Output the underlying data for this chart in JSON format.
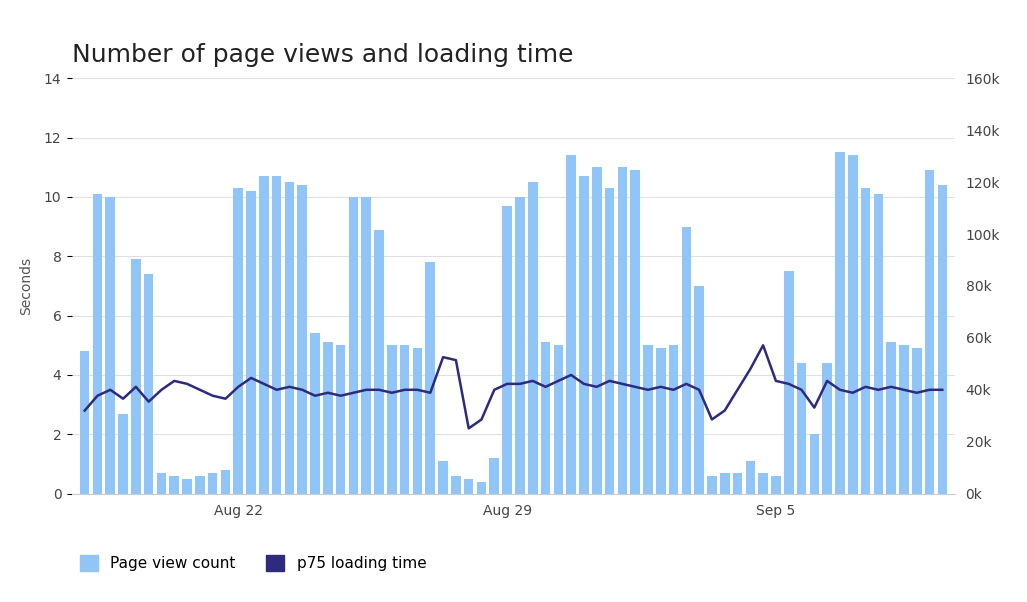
{
  "title": "Number of page views and loading time",
  "ylabel_left": "Seconds",
  "ylim_left": [
    0,
    14
  ],
  "ylim_right": [
    0,
    160000
  ],
  "yticks_left": [
    0,
    2,
    4,
    6,
    8,
    10,
    12,
    14
  ],
  "yticks_right": [
    0,
    20000,
    40000,
    60000,
    80000,
    100000,
    120000,
    140000,
    160000
  ],
  "bg_color": "#ffffff",
  "plot_bg_color": "#ffffff",
  "bar_color": "#92c5f7",
  "line_color": "#2d2b7f",
  "bar_width": 0.75,
  "bar_heights": [
    4.8,
    10.1,
    10.0,
    2.7,
    7.9,
    7.4,
    0.7,
    0.6,
    0.5,
    0.6,
    0.7,
    0.8,
    10.3,
    10.2,
    10.7,
    10.7,
    10.5,
    10.4,
    5.4,
    5.1,
    5.0,
    10.0,
    10.0,
    8.9,
    5.0,
    5.0,
    4.9,
    7.8,
    1.1,
    0.6,
    0.5,
    0.4,
    1.2,
    9.7,
    10.0,
    10.5,
    5.1,
    5.0,
    11.4,
    10.7,
    11.0,
    10.3,
    11.0,
    10.9,
    5.0,
    4.9,
    5.0,
    9.0,
    7.0,
    0.6,
    0.7,
    0.7,
    1.1,
    0.7,
    0.6,
    7.5,
    4.4,
    2.0,
    4.4,
    11.5,
    11.4,
    10.3,
    10.1,
    5.1,
    5.0,
    4.9,
    10.9,
    10.4
  ],
  "line_values": [
    2.8,
    3.3,
    3.5,
    3.2,
    3.6,
    3.1,
    3.5,
    3.8,
    3.7,
    3.5,
    3.3,
    3.2,
    3.6,
    3.9,
    3.7,
    3.5,
    3.6,
    3.5,
    3.3,
    3.4,
    3.3,
    3.4,
    3.5,
    3.5,
    3.4,
    3.5,
    3.5,
    3.4,
    4.6,
    4.5,
    2.2,
    2.5,
    3.5,
    3.7,
    3.7,
    3.8,
    3.6,
    3.8,
    4.0,
    3.7,
    3.6,
    3.8,
    3.7,
    3.6,
    3.5,
    3.6,
    3.5,
    3.7,
    3.5,
    2.5,
    2.8,
    3.5,
    4.2,
    5.0,
    3.8,
    3.7,
    3.5,
    2.9,
    3.8,
    3.5,
    3.4,
    3.6,
    3.5,
    3.6,
    3.5,
    3.4,
    3.5,
    3.5
  ],
  "xtick_positions": [
    12,
    33,
    54
  ],
  "xtick_labels": [
    "Aug 22",
    "Aug 29",
    "Sep 5"
  ],
  "legend_bar_label": "Page view count",
  "legend_line_label": "p75 loading time",
  "grid_color": "#e0e0e0",
  "title_fontsize": 18,
  "axis_label_fontsize": 10,
  "tick_fontsize": 10
}
